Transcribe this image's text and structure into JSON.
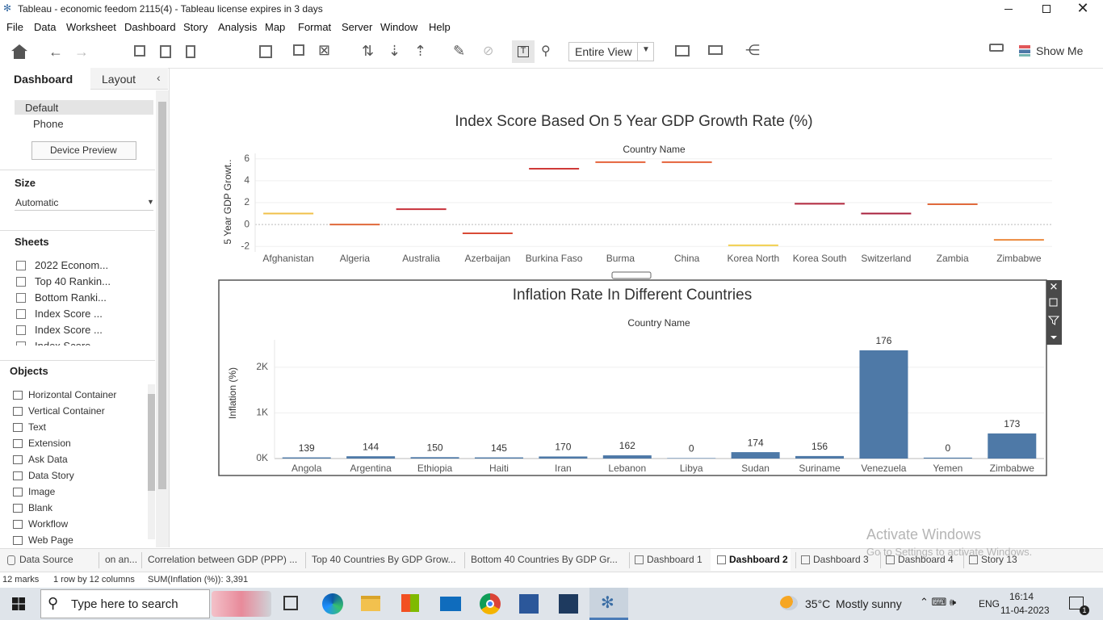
{
  "window": {
    "title": "Tableau - economic feedom 2115(4) - Tableau license expires in 3 days"
  },
  "menu": [
    "File",
    "Data",
    "Worksheet",
    "Dashboard",
    "Story",
    "Analysis",
    "Map",
    "Format",
    "Server",
    "Window",
    "Help"
  ],
  "toolbar": {
    "fit": "Entire View",
    "show_me": "Show Me"
  },
  "side_panel": {
    "tabs": [
      "Dashboard",
      "Layout"
    ],
    "devices": [
      "Default",
      "Phone"
    ],
    "device_preview": "Device Preview",
    "size_heading": "Size",
    "size_value": "Automatic",
    "sheets_heading": "Sheets",
    "sheets": [
      "2022 Econom...",
      "Top 40 Rankin...",
      "Bottom Ranki...",
      "Index Score ...",
      "Index Score ...",
      "Index Score"
    ],
    "objects_heading": "Objects",
    "objects": [
      "Horizontal Container",
      "Vertical Container",
      "Text",
      "Extension",
      "Ask Data",
      "Data Story",
      "Image",
      "Blank",
      "Workflow",
      "Web Page"
    ]
  },
  "chart_data": [
    {
      "type": "tick",
      "title": "Index Score Based On 5 Year GDP Growth Rate (%)",
      "column_header": "Country Name",
      "y_label": "5 Year GDP Growt..",
      "categories": [
        "Afghanistan",
        "Algeria",
        "Australia",
        "Azerbaijan",
        "Burkina Faso",
        "Burma",
        "China",
        "Korea North",
        "Korea South",
        "Switzerland",
        "Zambia",
        "Zimbabwe"
      ],
      "values": [
        1.0,
        0.0,
        1.4,
        -0.8,
        5.1,
        5.7,
        5.7,
        -1.9,
        1.9,
        1.0,
        1.85,
        -1.4
      ],
      "colors": [
        "#f0c04a",
        "#e0683a",
        "#c8303a",
        "#d94b36",
        "#cf3a38",
        "#e5623a",
        "#e5623a",
        "#f2d04f",
        "#b3283d",
        "#a8203c",
        "#e06a3c",
        "#eb8a3e"
      ],
      "ylim": [
        -2.5,
        6.5
      ],
      "yticks": [
        -2,
        0,
        2,
        4,
        6
      ],
      "grid": true
    },
    {
      "type": "bar",
      "title": "Inflation Rate In Different Countries",
      "column_header": "Country Name",
      "y_label": "Inflation (%)",
      "categories": [
        "Angola",
        "Argentina",
        "Ethiopia",
        "Haiti",
        "Iran",
        "Lebanon",
        "Libya",
        "Sudan",
        "Suriname",
        "Venezuela",
        "Yemen",
        "Zimbabwe"
      ],
      "values": [
        25,
        50,
        30,
        25,
        45,
        70,
        10,
        140,
        55,
        2371,
        20,
        550
      ],
      "mark_labels": [
        139,
        144,
        150,
        145,
        170,
        162,
        0,
        174,
        156,
        176,
        0,
        173
      ],
      "color": "#4e79a7",
      "ylim": [
        0,
        2600
      ],
      "yticks": [
        {
          "value": 0,
          "label": "0K"
        },
        {
          "value": 1000,
          "label": "1K"
        },
        {
          "value": 2000,
          "label": "2K"
        }
      ],
      "grid": true
    }
  ],
  "sheet_tabs": [
    "Data Source",
    "on an...",
    "Correlation between GDP (PPP) ...",
    "Top 40 Countries By GDP Grow...",
    "Bottom 40 Countries By GDP Gr...",
    "Dashboard 1",
    "Dashboard 2",
    "Dashboard 3",
    "Dashboard 4",
    "Story 13"
  ],
  "status_bar": [
    "12 marks",
    "1 row by 12 columns",
    "SUM(Inflation (%)): 3,391"
  ],
  "watermark": {
    "title": "Activate Windows",
    "text": "Go to Settings to activate Windows."
  },
  "taskbar": {
    "search": "Type here to search",
    "temperature": "35°C",
    "weather": "Mostly sunny",
    "language": "ENG",
    "time": "16:14",
    "date": "11-04-2023",
    "notifications": 1
  }
}
